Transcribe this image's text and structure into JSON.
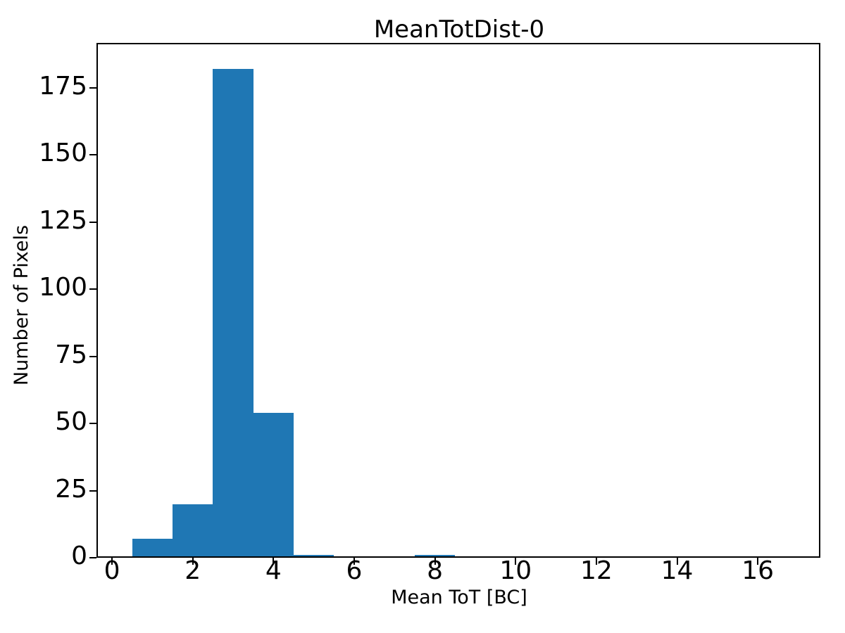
{
  "chart_data": {
    "type": "bar",
    "subtype": "histogram",
    "title": "MeanTotDist-0",
    "xlabel": "Mean ToT [BC]",
    "ylabel": "Number of Pixels",
    "bin_edges": [
      0.5,
      1.5,
      2.5,
      3.5,
      4.5,
      5.5,
      6.5,
      7.5,
      8.5
    ],
    "counts": [
      7,
      20,
      182,
      54,
      1,
      0,
      0,
      1
    ],
    "xticks": [
      0,
      2,
      4,
      6,
      8,
      10,
      12,
      14,
      16
    ],
    "yticks": [
      0,
      25,
      50,
      75,
      100,
      125,
      150,
      175
    ],
    "xlim": [
      -0.35,
      17.55
    ],
    "ylim": [
      0,
      191.1
    ],
    "bar_color": "#1f77b4",
    "axis_color": "#000000",
    "text_color": "#000000",
    "background_color": "#ffffff",
    "grid": false,
    "legend_position": "none"
  }
}
